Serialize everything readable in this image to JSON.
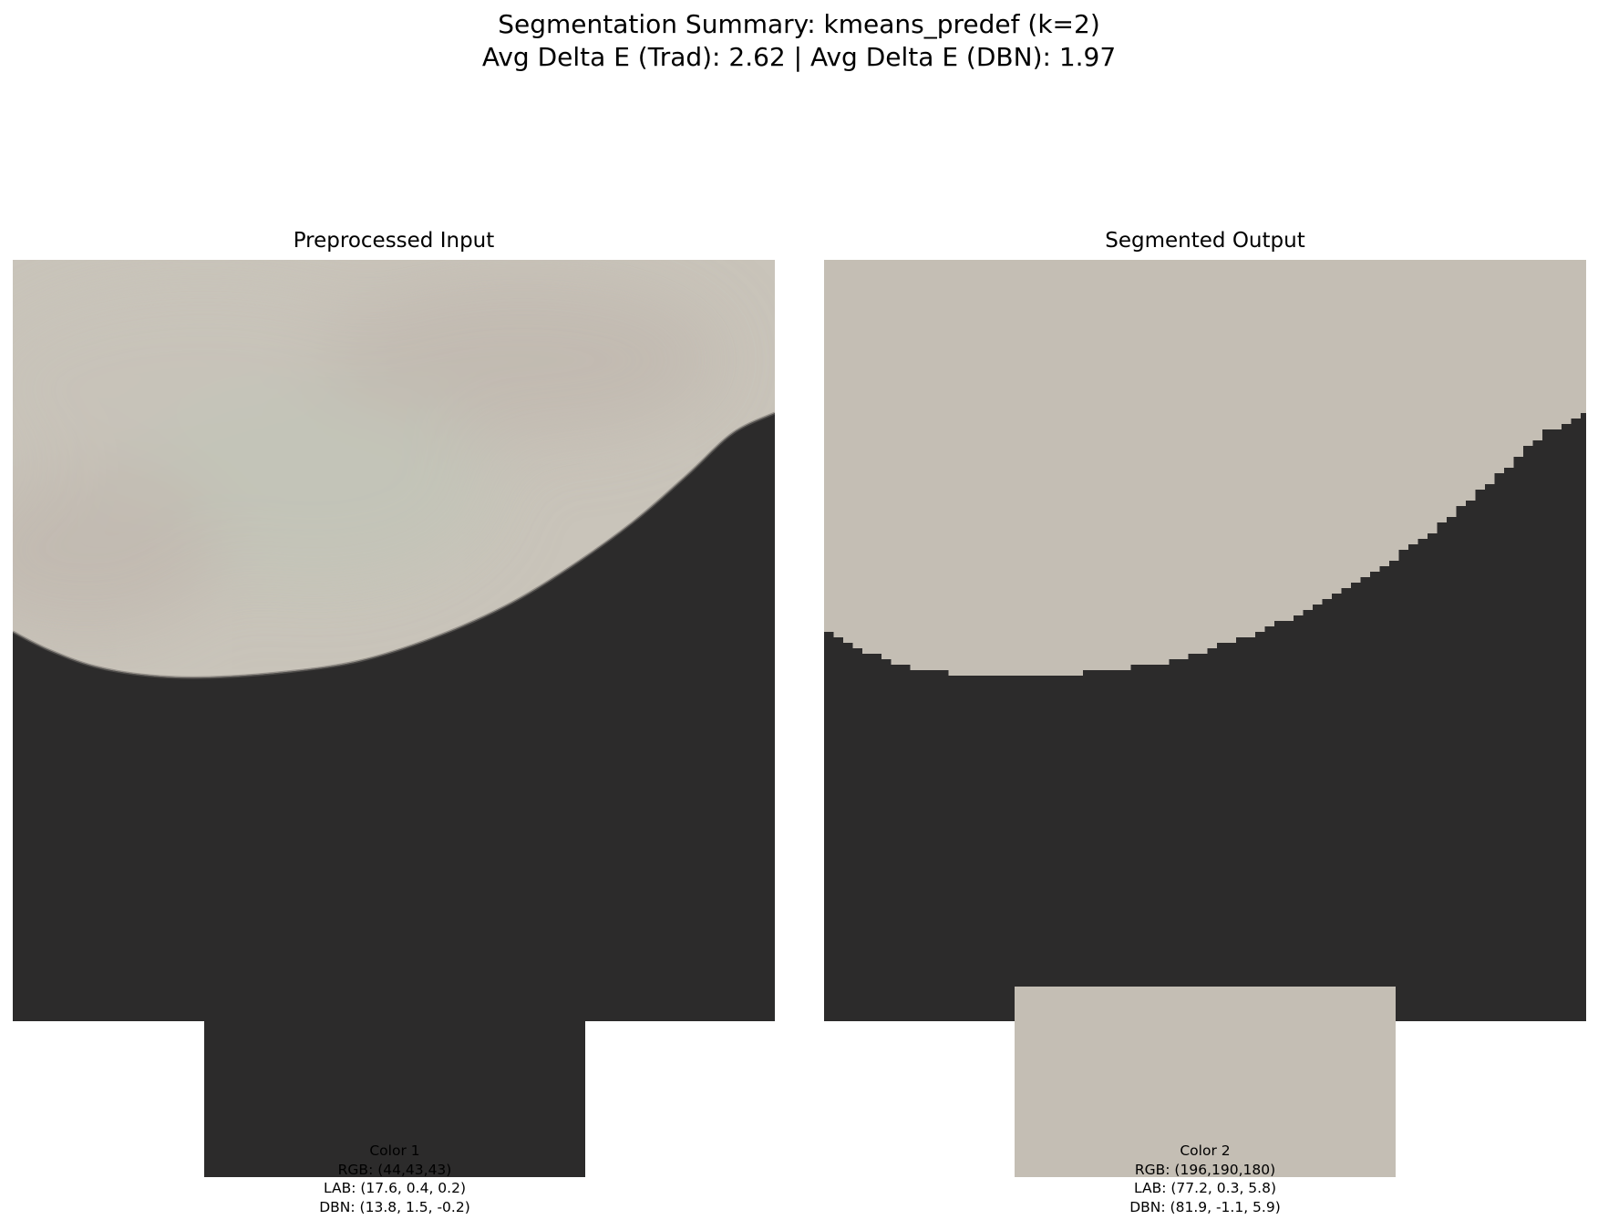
{
  "figure": {
    "title_line1": "Segmentation Summary: kmeans_predef (k=2)",
    "title_line2": "Avg Delta E (Trad): 2.62 | Avg Delta E (DBN): 1.97"
  },
  "panels": {
    "input": {
      "title": "Preprocessed Input"
    },
    "output": {
      "title": "Segmented Output"
    }
  },
  "colors": {
    "dark": "#2c2b2b",
    "light": "#c4beb4",
    "light_variants": [
      "#c9c4ba",
      "#c1b9b0",
      "#c2c4b8",
      "#c8c3b9"
    ]
  },
  "swatches": [
    {
      "name": "Color 1",
      "rgb": "RGB: (44,43,43)",
      "lab": "LAB: (17.6, 0.4, 0.2)",
      "dbn": "DBN: (13.8, 1.5, -0.2)",
      "hex": "#2c2b2b"
    },
    {
      "name": "Color 2",
      "rgb": "RGB: (196,190,180)",
      "lab": "LAB: (77.2, 0.3, 5.8)",
      "dbn": "DBN: (81.9, -1.1, 5.9)",
      "hex": "#c4beb4"
    }
  ],
  "chart_data": {
    "type": "image-segmentation-summary",
    "method": "kmeans_predef",
    "k": 2,
    "avg_delta_e_trad": 2.62,
    "avg_delta_e_dbn": 1.97,
    "clusters": [
      {
        "label": "Color 1",
        "rgb": [
          44,
          43,
          43
        ],
        "lab": [
          17.6,
          0.4,
          0.2
        ],
        "dbn": [
          13.8,
          1.5,
          -0.2
        ]
      },
      {
        "label": "Color 2",
        "rgb": [
          196,
          190,
          180
        ],
        "lab": [
          77.2,
          0.3,
          5.8
        ],
        "dbn": [
          81.9,
          -1.1,
          5.9
        ]
      }
    ]
  }
}
